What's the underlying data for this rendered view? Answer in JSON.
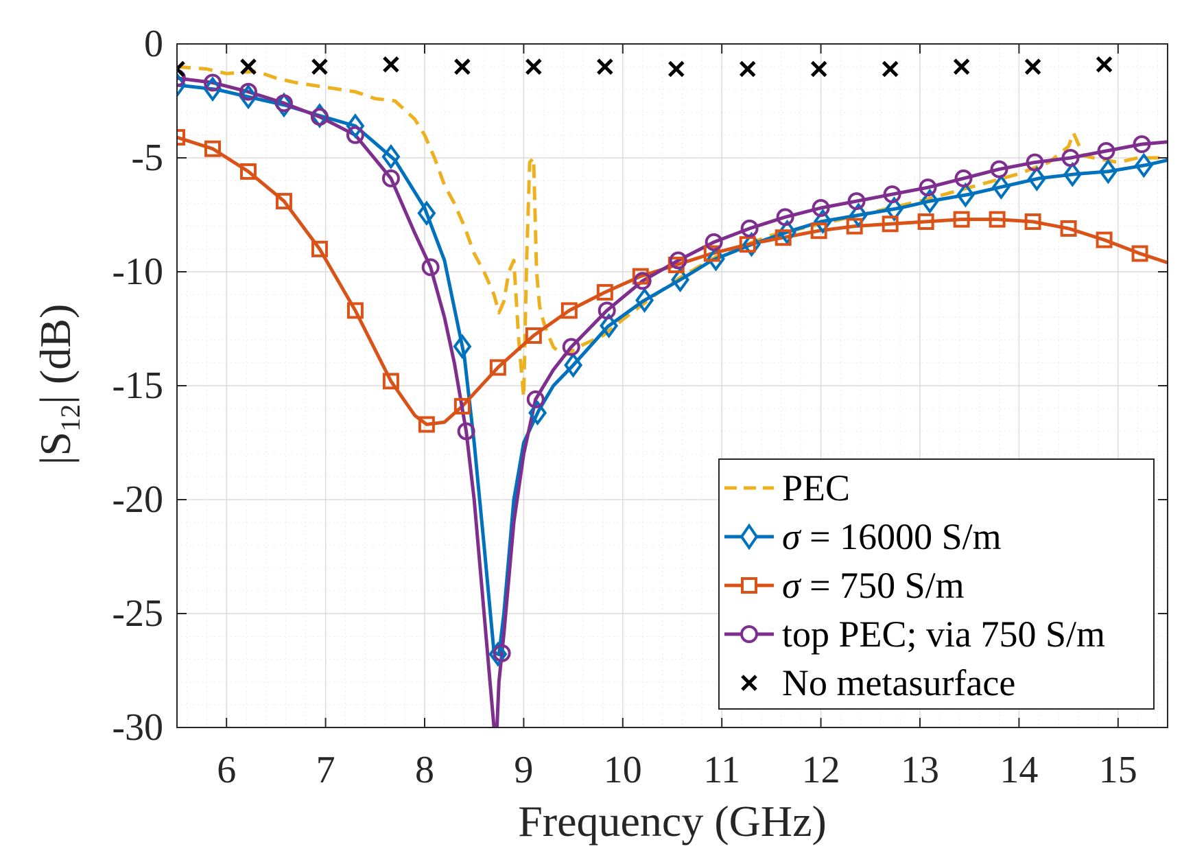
{
  "chart_data": {
    "type": "line",
    "title": "",
    "xlabel": "Frequency (GHz)",
    "ylabel": "|S12| (dB)",
    "ylabel_main": "|S",
    "ylabel_sub": "12",
    "ylabel_tail": "| (dB)",
    "xlim": [
      5.5,
      15.5
    ],
    "ylim": [
      -30,
      0
    ],
    "xticks": [
      6,
      7,
      8,
      9,
      10,
      11,
      12,
      13,
      14,
      15
    ],
    "yticks": [
      0,
      -5,
      -10,
      -15,
      -20,
      -25,
      -30
    ],
    "xtick_labels": [
      "6",
      "7",
      "8",
      "9",
      "10",
      "11",
      "12",
      "13",
      "14",
      "15"
    ],
    "ytick_labels": [
      "0",
      "-5",
      "-10",
      "-15",
      "-20",
      "-25",
      "-30"
    ],
    "grid": true,
    "minor_grid": true,
    "legend_position": "bottom-right",
    "series": [
      {
        "name": "PEC",
        "legend_label": "PEC",
        "color": "#EDB120",
        "style": "dashed",
        "marker": "none",
        "x": [
          5.5,
          5.8,
          6.0,
          6.3,
          6.5,
          6.7,
          7.0,
          7.3,
          7.5,
          7.7,
          7.9,
          8.0,
          8.1,
          8.2,
          8.3,
          8.4,
          8.5,
          8.6,
          8.7,
          8.75,
          8.8,
          8.85,
          8.9,
          8.95,
          9.0,
          9.03,
          9.06,
          9.1,
          9.13,
          9.16,
          9.2,
          9.25,
          9.3,
          9.4,
          9.6,
          9.8,
          10.0,
          10.3,
          10.6,
          11.0,
          11.5,
          12.0,
          12.5,
          13.0,
          13.5,
          14.0,
          14.3,
          14.5,
          14.55,
          14.6,
          14.65,
          14.75,
          15.0,
          15.2,
          15.5
        ],
        "y": [
          -1.0,
          -1.1,
          -1.3,
          -1.2,
          -1.5,
          -1.7,
          -1.9,
          -2.1,
          -2.4,
          -2.5,
          -3.3,
          -4.0,
          -5.0,
          -6.2,
          -7.0,
          -8.0,
          -9.2,
          -10.0,
          -11.0,
          -11.8,
          -11.3,
          -10.0,
          -9.5,
          -13.0,
          -15.5,
          -9.5,
          -5.2,
          -5.0,
          -10.0,
          -11.5,
          -12.2,
          -12.8,
          -13.3,
          -13.7,
          -13.2,
          -12.8,
          -12.1,
          -11.1,
          -10.2,
          -9.2,
          -8.4,
          -7.9,
          -7.4,
          -6.9,
          -6.3,
          -5.7,
          -5.2,
          -4.5,
          -3.9,
          -4.4,
          -4.9,
          -5.0,
          -5.2,
          -5.0,
          -5.0
        ]
      },
      {
        "name": "σ = 16000 S/m",
        "legend_sigma": "σ",
        "legend_label": " = 16000 S/m",
        "color": "#0072BD",
        "style": "solid",
        "marker": "diamond",
        "x": [
          5.5,
          5.9,
          6.2,
          6.6,
          6.9,
          7.3,
          7.7,
          8.0,
          8.2,
          8.4,
          8.5,
          8.6,
          8.7,
          8.75,
          8.8,
          8.9,
          9.0,
          9.15,
          9.3,
          9.5,
          9.85,
          10.2,
          10.6,
          10.9,
          11.3,
          11.7,
          12.0,
          12.4,
          12.8,
          13.1,
          13.5,
          13.9,
          14.2,
          14.6,
          14.9,
          15.3,
          15.5
        ],
        "y": [
          -1.8,
          -2.0,
          -2.3,
          -2.7,
          -3.1,
          -3.6,
          -5.1,
          -7.2,
          -9.5,
          -13.7,
          -17.5,
          -22.0,
          -26.7,
          -26.8,
          -25.0,
          -20.0,
          -17.5,
          -16.1,
          -15.0,
          -14.1,
          -12.4,
          -11.3,
          -10.3,
          -9.5,
          -8.8,
          -8.2,
          -7.8,
          -7.5,
          -7.2,
          -6.9,
          -6.6,
          -6.2,
          -5.9,
          -5.7,
          -5.6,
          -5.3,
          -5.1
        ],
        "marker_x": [
          5.5,
          5.86,
          6.22,
          6.58,
          6.94,
          7.3,
          7.66,
          8.02,
          8.38,
          8.74,
          9.14,
          9.5,
          9.86,
          10.22,
          10.58,
          10.94,
          11.3,
          11.66,
          12.02,
          12.38,
          12.74,
          13.1,
          13.46,
          13.82,
          14.18,
          14.54,
          14.9,
          15.26
        ]
      },
      {
        "name": "σ = 750 S/m",
        "legend_sigma": "σ",
        "legend_label": " = 750 S/m",
        "color": "#D95319",
        "style": "solid",
        "marker": "square",
        "x": [
          5.5,
          5.86,
          6.22,
          6.58,
          6.94,
          7.3,
          7.66,
          7.9,
          8.02,
          8.2,
          8.38,
          8.74,
          9.1,
          9.46,
          9.82,
          10.18,
          10.54,
          10.9,
          11.26,
          11.62,
          11.98,
          12.34,
          12.7,
          13.06,
          13.42,
          13.78,
          14.14,
          14.5,
          14.86,
          15.22,
          15.5
        ],
        "y": [
          -4.1,
          -4.6,
          -5.6,
          -6.9,
          -9.0,
          -11.7,
          -14.8,
          -16.3,
          -16.7,
          -16.6,
          -15.9,
          -14.2,
          -12.8,
          -11.7,
          -10.9,
          -10.2,
          -9.7,
          -9.2,
          -8.8,
          -8.5,
          -8.2,
          -8.0,
          -7.9,
          -7.8,
          -7.7,
          -7.7,
          -7.8,
          -8.1,
          -8.6,
          -9.2,
          -9.6
        ],
        "marker_x": [
          5.5,
          5.86,
          6.22,
          6.58,
          6.94,
          7.3,
          7.66,
          8.02,
          8.38,
          8.74,
          9.1,
          9.46,
          9.82,
          10.18,
          10.54,
          10.9,
          11.26,
          11.62,
          11.98,
          12.34,
          12.7,
          13.06,
          13.42,
          13.78,
          14.14,
          14.5,
          14.86,
          15.22
        ]
      },
      {
        "name": "top PEC; via 750 S/m",
        "legend_label": "top PEC; via 750 S/m",
        "color": "#7E2F8E",
        "style": "solid",
        "marker": "circle",
        "x": [
          5.5,
          5.86,
          6.22,
          6.58,
          6.94,
          7.3,
          7.66,
          7.9,
          8.06,
          8.2,
          8.3,
          8.42,
          8.5,
          8.58,
          8.66,
          8.72,
          8.75,
          8.8,
          8.9,
          9.0,
          9.12,
          9.3,
          9.48,
          9.84,
          10.2,
          10.56,
          10.92,
          11.28,
          11.64,
          12.0,
          12.36,
          12.72,
          13.08,
          13.44,
          13.8,
          14.16,
          14.52,
          14.88,
          15.24,
          15.5
        ],
        "y": [
          -1.5,
          -1.7,
          -2.1,
          -2.6,
          -3.2,
          -4.0,
          -5.9,
          -8.3,
          -9.8,
          -12.0,
          -14.0,
          -17.0,
          -20.0,
          -24.0,
          -28.0,
          -31.0,
          -28.0,
          -25.9,
          -21.0,
          -18.0,
          -15.6,
          -14.3,
          -13.3,
          -11.7,
          -10.4,
          -9.5,
          -8.7,
          -8.1,
          -7.6,
          -7.2,
          -6.9,
          -6.6,
          -6.3,
          -5.9,
          -5.5,
          -5.2,
          -5.0,
          -4.7,
          -4.4,
          -4.3
        ],
        "marker_x": [
          5.5,
          5.86,
          6.22,
          6.58,
          6.94,
          7.3,
          7.66,
          8.06,
          8.42,
          8.78,
          9.12,
          9.48,
          9.84,
          10.2,
          10.56,
          10.92,
          11.28,
          11.64,
          12.0,
          12.36,
          12.72,
          13.08,
          13.44,
          13.8,
          14.16,
          14.52,
          14.88,
          15.24
        ]
      },
      {
        "name": "No metasurface",
        "legend_label": "No metasurface",
        "color": "#000000",
        "style": "none",
        "marker": "x",
        "x": [
          5.5,
          6.22,
          6.94,
          7.66,
          8.38,
          9.1,
          9.82,
          10.54,
          11.26,
          11.98,
          12.7,
          13.42,
          14.14,
          14.86
        ],
        "y": [
          -1.1,
          -1.0,
          -1.0,
          -0.9,
          -1.0,
          -1.0,
          -1.0,
          -1.1,
          -1.1,
          -1.1,
          -1.1,
          -1.0,
          -1.0,
          -0.9
        ]
      }
    ]
  }
}
